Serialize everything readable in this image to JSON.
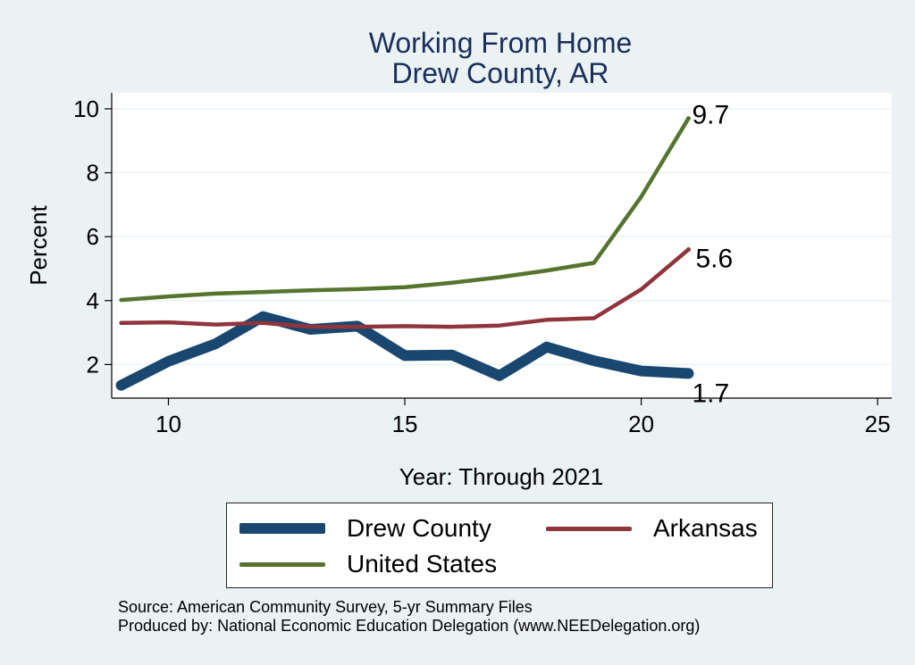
{
  "chart_data": {
    "type": "line",
    "title": "Working From Home",
    "subtitle": "Drew County, AR",
    "xlabel": "Year: Through 2021",
    "ylabel": "Percent",
    "xlim": [
      8.8,
      25.3
    ],
    "ylim": [
      0.95,
      10.5
    ],
    "xticks": [
      10,
      15,
      20,
      25
    ],
    "yticks": [
      2,
      4,
      6,
      8,
      10
    ],
    "grid": true,
    "legend": "bottom",
    "x": [
      9,
      10,
      11,
      12,
      13,
      14,
      15,
      16,
      17,
      18,
      19,
      20,
      21
    ],
    "series": [
      {
        "name": "Drew County",
        "color": "#1a476f",
        "values": [
          1.35,
          2.1,
          2.65,
          3.5,
          3.1,
          3.2,
          2.28,
          2.3,
          1.65,
          2.55,
          2.12,
          1.8,
          1.72
        ],
        "end_label": "1.7"
      },
      {
        "name": "Arkansas",
        "color": "#90353b",
        "values": [
          3.3,
          3.32,
          3.25,
          3.3,
          3.18,
          3.18,
          3.2,
          3.18,
          3.22,
          3.4,
          3.45,
          4.35,
          5.6
        ],
        "end_label": "5.6"
      },
      {
        "name": "United States",
        "color": "#55752f",
        "values": [
          4.02,
          4.13,
          4.22,
          4.27,
          4.32,
          4.36,
          4.42,
          4.56,
          4.73,
          4.94,
          5.18,
          7.25,
          9.7
        ],
        "end_label": "9.7"
      }
    ]
  },
  "footer": {
    "source": "Source: American Community Survey, 5-yr Summary Files",
    "produced": "Produced by: National Economic Education Delegation (www.NEEDelegation.org)"
  }
}
